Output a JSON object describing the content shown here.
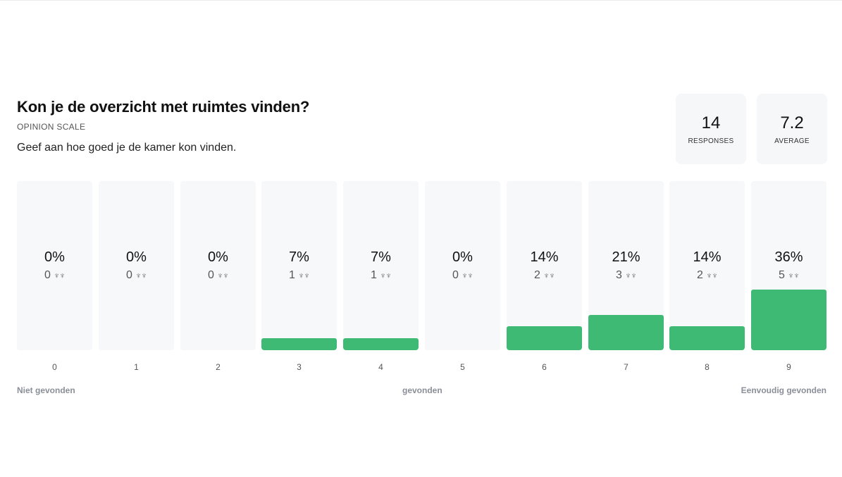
{
  "question": {
    "title": "Kon je de overzicht met ruimtes vinden?",
    "type": "OPINION SCALE",
    "description": "Geef aan hoe goed je de kamer kon vinden."
  },
  "stats": {
    "responses_value": "14",
    "responses_label": "RESPONSES",
    "average_value": "7.2",
    "average_label": "AVERAGE"
  },
  "scale_labels": {
    "left": "Niet gevonden",
    "center": "gevonden",
    "right": "Eenvoudig gevonden"
  },
  "people_icon": "people-icon",
  "colors": {
    "bar": "#3fba74",
    "column_bg": "#f7f8fa"
  },
  "chart_data": {
    "type": "bar",
    "categories": [
      "0",
      "1",
      "2",
      "3",
      "4",
      "5",
      "6",
      "7",
      "8",
      "9"
    ],
    "percent_labels": [
      "0%",
      "0%",
      "0%",
      "7%",
      "7%",
      "0%",
      "14%",
      "21%",
      "14%",
      "36%"
    ],
    "counts": [
      0,
      0,
      0,
      1,
      1,
      0,
      2,
      3,
      2,
      5
    ],
    "values": [
      0,
      0,
      0,
      7,
      7,
      0,
      14,
      21,
      14,
      36
    ],
    "ylim": [
      0,
      100
    ]
  }
}
